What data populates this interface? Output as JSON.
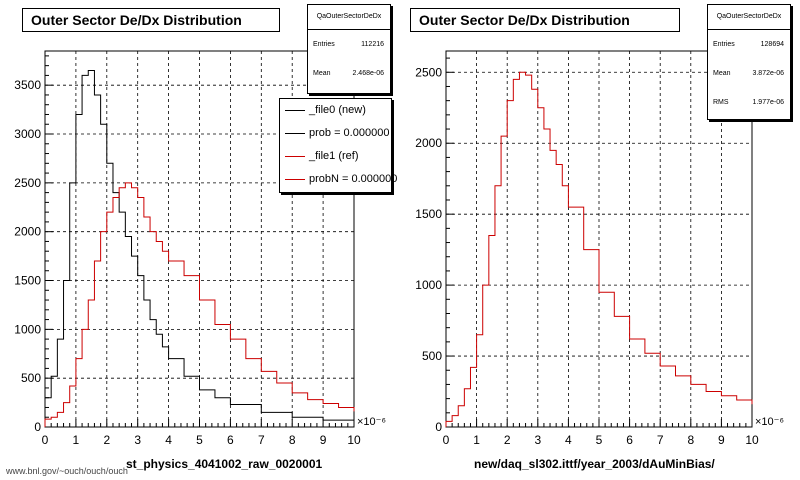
{
  "panels": [
    {
      "title": "Outer Sector De/Dx Distribution",
      "stats": {
        "name": "QaOuterSectorDeDx",
        "rows": [
          {
            "label": "Entries",
            "value": "112216"
          },
          {
            "label": "Mean",
            "value": "2.468e-06"
          }
        ]
      },
      "legend": [
        {
          "label": "_file0 (new)",
          "color": "#000000"
        },
        {
          "label": "prob = 0.000000",
          "color": "#000000"
        },
        {
          "label": "_file1 (ref)",
          "color": "#cc0000"
        },
        {
          "label": "probN = 0.000000",
          "color": "#cc0000"
        }
      ],
      "xtitle": "st_physics_4041002_raw_0020001",
      "exponent": "×10⁻⁶"
    },
    {
      "title": "Outer Sector De/Dx Distribution",
      "stats": {
        "name": "QaOuterSectorDeDx",
        "rows": [
          {
            "label": "Entries",
            "value": "128694"
          },
          {
            "label": "Mean",
            "value": "3.872e-06"
          },
          {
            "label": "RMS",
            "value": "1.977e-06"
          }
        ]
      },
      "xtitle": "new/daq_sl302.ittf/year_2003/dAuMinBias/",
      "exponent": "×10⁻⁶"
    }
  ],
  "footer": "www.bnl.gov/~ouch/ouch/ouch",
  "chart_data": [
    {
      "type": "line",
      "title": "Outer Sector De/Dx Distribution",
      "xlabel": "st_physics_4041002_raw_0020001",
      "ylabel": "",
      "xlim": [
        0,
        10
      ],
      "ylim": [
        0,
        3850
      ],
      "xticks": [
        0,
        1,
        2,
        3,
        4,
        5,
        6,
        7,
        8,
        9,
        10
      ],
      "yticks": [
        0,
        500,
        1000,
        1500,
        2000,
        2500,
        3000,
        3500
      ],
      "grid": true,
      "legend_position": "top-right",
      "series": [
        {
          "name": "_file0 (new)",
          "color": "#000000",
          "x": [
            0,
            0.2,
            0.4,
            0.6,
            0.8,
            1.0,
            1.2,
            1.4,
            1.6,
            1.8,
            2.0,
            2.2,
            2.4,
            2.6,
            2.8,
            3.0,
            3.2,
            3.4,
            3.6,
            3.8,
            4.0,
            4.5,
            5.0,
            5.5,
            6.0,
            7.0,
            8.0,
            9.0,
            10.0
          ],
          "y": [
            300,
            520,
            900,
            1500,
            2500,
            3200,
            3600,
            3650,
            3400,
            3100,
            2700,
            2400,
            2200,
            1950,
            1750,
            1550,
            1300,
            1100,
            950,
            820,
            700,
            520,
            380,
            300,
            230,
            150,
            100,
            70,
            50
          ]
        },
        {
          "name": "_file1 (ref)",
          "color": "#cc0000",
          "x": [
            0,
            0.2,
            0.4,
            0.6,
            0.8,
            1.0,
            1.2,
            1.4,
            1.6,
            1.8,
            2.0,
            2.2,
            2.4,
            2.6,
            2.8,
            3.0,
            3.2,
            3.4,
            3.6,
            3.8,
            4.0,
            4.5,
            5.0,
            5.5,
            6.0,
            6.5,
            7.0,
            7.5,
            8.0,
            8.5,
            9.0,
            9.5,
            10.0
          ],
          "y": [
            80,
            100,
            150,
            250,
            420,
            700,
            1000,
            1300,
            1700,
            2000,
            2200,
            2350,
            2450,
            2500,
            2450,
            2350,
            2150,
            2000,
            1900,
            1800,
            1700,
            1550,
            1300,
            1050,
            900,
            700,
            570,
            450,
            350,
            280,
            240,
            200,
            160
          ]
        }
      ]
    },
    {
      "type": "line",
      "title": "Outer Sector De/Dx Distribution",
      "xlabel": "new/daq_sl302.ittf/year_2003/dAuMinBias/",
      "ylabel": "",
      "xlim": [
        0,
        10
      ],
      "ylim": [
        0,
        2650
      ],
      "xticks": [
        0,
        1,
        2,
        3,
        4,
        5,
        6,
        7,
        8,
        9,
        10
      ],
      "yticks": [
        0,
        500,
        1000,
        1500,
        2000,
        2500
      ],
      "grid": true,
      "series": [
        {
          "color": "#cc0000",
          "x": [
            0,
            0.2,
            0.4,
            0.6,
            0.8,
            1.0,
            1.2,
            1.4,
            1.6,
            1.8,
            2.0,
            2.2,
            2.4,
            2.6,
            2.8,
            3.0,
            3.2,
            3.4,
            3.6,
            3.8,
            4.0,
            4.5,
            5.0,
            5.5,
            6.0,
            6.5,
            7.0,
            7.5,
            8.0,
            8.5,
            9.0,
            9.5,
            10.0
          ],
          "y": [
            40,
            80,
            150,
            270,
            420,
            650,
            1000,
            1350,
            1700,
            2050,
            2300,
            2450,
            2500,
            2480,
            2380,
            2250,
            2100,
            1950,
            1850,
            1700,
            1550,
            1250,
            950,
            780,
            620,
            520,
            430,
            360,
            300,
            250,
            220,
            190,
            160
          ]
        }
      ]
    }
  ]
}
